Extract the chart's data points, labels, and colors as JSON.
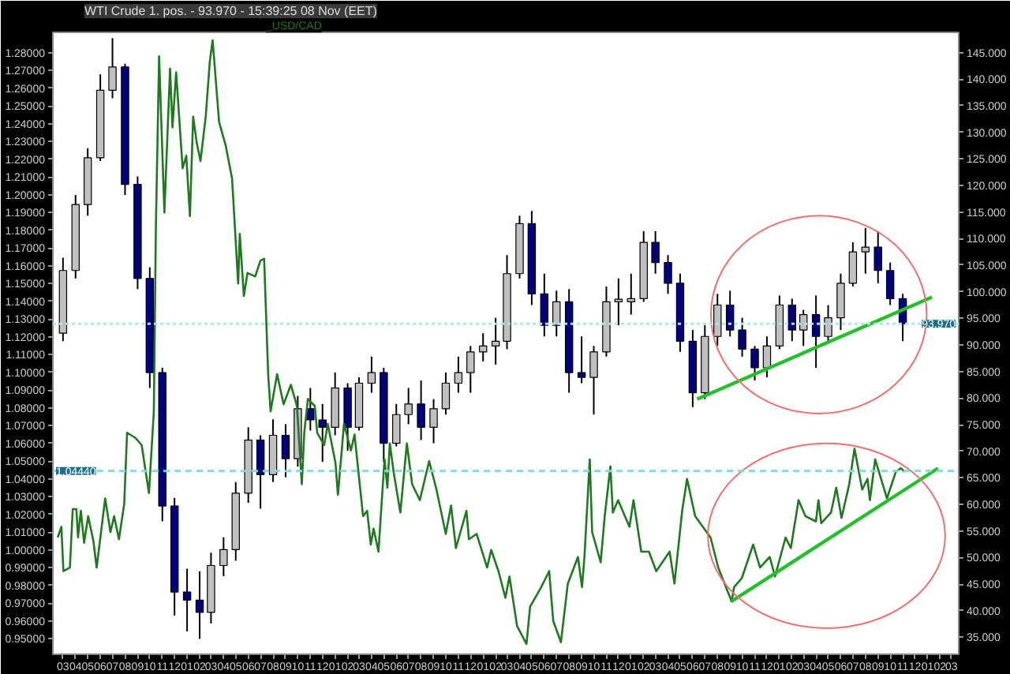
{
  "chart_data": {
    "type": "candlestick",
    "title": "WTI Crude 1. pos. - 93.970 - 15:39:25 08 Nov (EET)",
    "xlim": [
      "2008-02-05",
      "2014-03-19"
    ],
    "ylim": [
      0.9412,
      1.2915
    ],
    "y2lim": [
      31.8,
      148.8
    ],
    "xticks": [
      {
        "value": "2008-03-01",
        "label": "03"
      },
      {
        "value": "2008-04-01",
        "label": "04"
      },
      {
        "value": "2008-05-01",
        "label": "05"
      },
      {
        "value": "2008-06-01",
        "label": "06"
      },
      {
        "value": "2008-07-01",
        "label": "07"
      },
      {
        "value": "2008-08-01",
        "label": "08"
      },
      {
        "value": "2008-09-01",
        "label": "09"
      },
      {
        "value": "2008-10-01",
        "label": "10"
      },
      {
        "value": "2008-11-01",
        "label": "11"
      },
      {
        "value": "2008-12-01",
        "label": "12"
      },
      {
        "value": "2009-01-01",
        "label": "01"
      },
      {
        "value": "2009-02-01",
        "label": "02"
      },
      {
        "value": "2009-03-01",
        "label": "03"
      },
      {
        "value": "2009-04-01",
        "label": "04"
      },
      {
        "value": "2009-05-01",
        "label": "05"
      },
      {
        "value": "2009-06-01",
        "label": "06"
      },
      {
        "value": "2009-07-01",
        "label": "07"
      },
      {
        "value": "2009-08-01",
        "label": "08"
      },
      {
        "value": "2009-09-01",
        "label": "09"
      },
      {
        "value": "2009-10-01",
        "label": "10"
      },
      {
        "value": "2009-11-01",
        "label": "11"
      },
      {
        "value": "2009-12-01",
        "label": "12"
      },
      {
        "value": "2010-01-01",
        "label": "01"
      },
      {
        "value": "2010-02-01",
        "label": "02"
      },
      {
        "value": "2010-03-01",
        "label": "03"
      },
      {
        "value": "2010-04-01",
        "label": "04"
      },
      {
        "value": "2010-05-01",
        "label": "05"
      },
      {
        "value": "2010-06-01",
        "label": "06"
      },
      {
        "value": "2010-07-01",
        "label": "07"
      },
      {
        "value": "2010-08-01",
        "label": "08"
      },
      {
        "value": "2010-09-01",
        "label": "09"
      },
      {
        "value": "2010-10-01",
        "label": "10"
      },
      {
        "value": "2010-11-01",
        "label": "11"
      },
      {
        "value": "2010-12-01",
        "label": "12"
      },
      {
        "value": "2011-01-01",
        "label": "01"
      },
      {
        "value": "2011-02-01",
        "label": "02"
      },
      {
        "value": "2011-03-01",
        "label": "03"
      },
      {
        "value": "2011-04-01",
        "label": "04"
      },
      {
        "value": "2011-05-01",
        "label": "05"
      },
      {
        "value": "2011-06-01",
        "label": "06"
      },
      {
        "value": "2011-07-01",
        "label": "07"
      },
      {
        "value": "2011-08-01",
        "label": "08"
      },
      {
        "value": "2011-09-01",
        "label": "09"
      },
      {
        "value": "2011-10-01",
        "label": "10"
      },
      {
        "value": "2011-11-01",
        "label": "11"
      },
      {
        "value": "2011-12-01",
        "label": "12"
      },
      {
        "value": "2012-01-01",
        "label": "01"
      },
      {
        "value": "2012-02-01",
        "label": "02"
      },
      {
        "value": "2012-03-01",
        "label": "03"
      },
      {
        "value": "2012-04-01",
        "label": "04"
      },
      {
        "value": "2012-05-01",
        "label": "05"
      },
      {
        "value": "2012-06-01",
        "label": "06"
      },
      {
        "value": "2012-07-01",
        "label": "07"
      },
      {
        "value": "2012-08-01",
        "label": "08"
      },
      {
        "value": "2012-09-01",
        "label": "09"
      },
      {
        "value": "2012-10-01",
        "label": "10"
      },
      {
        "value": "2012-11-01",
        "label": "11"
      },
      {
        "value": "2012-12-01",
        "label": "12"
      },
      {
        "value": "2013-01-01",
        "label": "01"
      },
      {
        "value": "2013-02-01",
        "label": "02"
      },
      {
        "value": "2013-03-01",
        "label": "03"
      },
      {
        "value": "2013-04-01",
        "label": "04"
      },
      {
        "value": "2013-05-01",
        "label": "05"
      },
      {
        "value": "2013-06-01",
        "label": "06"
      },
      {
        "value": "2013-07-01",
        "label": "07"
      },
      {
        "value": "2013-08-01",
        "label": "08"
      },
      {
        "value": "2013-09-01",
        "label": "09"
      },
      {
        "value": "2013-10-01",
        "label": "10"
      },
      {
        "value": "2013-11-01",
        "label": "11"
      },
      {
        "value": "2013-12-01",
        "label": "12"
      },
      {
        "value": "2014-01-01",
        "label": "01"
      },
      {
        "value": "2014-02-01",
        "label": "02"
      },
      {
        "value": "2014-03-01",
        "label": "03"
      }
    ],
    "yticks": [
      {
        "value": 0.95,
        "label": "0.95000"
      },
      {
        "value": 0.96,
        "label": "0.96000"
      },
      {
        "value": 0.97,
        "label": "0.97000"
      },
      {
        "value": 0.98,
        "label": "0.98000"
      },
      {
        "value": 0.99,
        "label": "0.99000"
      },
      {
        "value": 1.0,
        "label": "1.00000"
      },
      {
        "value": 1.01,
        "label": "1.01000"
      },
      {
        "value": 1.02,
        "label": "1.02000"
      },
      {
        "value": 1.03,
        "label": "1.03000"
      },
      {
        "value": 1.04,
        "label": "1.04000"
      },
      {
        "value": 1.05,
        "label": "1.05000"
      },
      {
        "value": 1.06,
        "label": "1.06000"
      },
      {
        "value": 1.07,
        "label": "1.07000"
      },
      {
        "value": 1.08,
        "label": "1.08000"
      },
      {
        "value": 1.09,
        "label": "1.09000"
      },
      {
        "value": 1.1,
        "label": "1.10000"
      },
      {
        "value": 1.11,
        "label": "1.11000"
      },
      {
        "value": 1.12,
        "label": "1.12000"
      },
      {
        "value": 1.13,
        "label": "1.13000"
      },
      {
        "value": 1.14,
        "label": "1.14000"
      },
      {
        "value": 1.15,
        "label": "1.15000"
      },
      {
        "value": 1.16,
        "label": "1.16000"
      },
      {
        "value": 1.17,
        "label": "1.17000"
      },
      {
        "value": 1.18,
        "label": "1.18000"
      },
      {
        "value": 1.19,
        "label": "1.19000"
      },
      {
        "value": 1.2,
        "label": "1.20000"
      },
      {
        "value": 1.21,
        "label": "1.21000"
      },
      {
        "value": 1.22,
        "label": "1.22000"
      },
      {
        "value": 1.23,
        "label": "1.23000"
      },
      {
        "value": 1.24,
        "label": "1.24000"
      },
      {
        "value": 1.25,
        "label": "1.25000"
      },
      {
        "value": 1.26,
        "label": "1.26000"
      },
      {
        "value": 1.27,
        "label": "1.27000"
      },
      {
        "value": 1.28,
        "label": "1.28000"
      }
    ],
    "y2ticks": [
      {
        "value": 35,
        "label": "35.000"
      },
      {
        "value": 40,
        "label": "40.000"
      },
      {
        "value": 45,
        "label": "45.000"
      },
      {
        "value": 50,
        "label": "50.000"
      },
      {
        "value": 55,
        "label": "55.000"
      },
      {
        "value": 60,
        "label": "60.000"
      },
      {
        "value": 65,
        "label": "65.000"
      },
      {
        "value": 70,
        "label": "70.000"
      },
      {
        "value": 75,
        "label": "75.000"
      },
      {
        "value": 80,
        "label": "80.000"
      },
      {
        "value": 85,
        "label": "85.000"
      },
      {
        "value": 90,
        "label": "90.000"
      },
      {
        "value": 95,
        "label": "95.000"
      },
      {
        "value": 100,
        "label": "100.000"
      },
      {
        "value": 105,
        "label": "105.000"
      },
      {
        "value": 110,
        "label": "110.000"
      },
      {
        "value": 115,
        "label": "115.000"
      },
      {
        "value": 120,
        "label": "120.000"
      },
      {
        "value": 125,
        "label": "125.000"
      },
      {
        "value": 130,
        "label": "130.000"
      },
      {
        "value": 135,
        "label": "135.000"
      },
      {
        "value": 140,
        "label": "140.000"
      },
      {
        "value": 145,
        "label": "145.000"
      }
    ],
    "ref_lines": [
      {
        "axis": "y",
        "value": 1.0444,
        "label": "1.04440",
        "color": "#7fdcdc",
        "line_style": "dashed"
      },
      {
        "axis": "y2",
        "value": 93.97,
        "label": "93.970",
        "color": "#a8e8ec",
        "line_style": "dotted"
      }
    ],
    "series": [
      {
        "axis": "y2",
        "x": [
          "2008-03-01",
          "2008-04-01",
          "2008-05-01",
          "2008-06-01",
          "2008-07-01",
          "2008-08-01",
          "2008-09-01",
          "2008-10-01",
          "2008-11-01",
          "2008-12-01",
          "2009-01-01",
          "2009-02-01",
          "2009-03-01",
          "2009-04-01",
          "2009-05-01",
          "2009-06-01",
          "2009-07-01",
          "2009-08-01",
          "2009-09-01",
          "2009-10-01",
          "2009-11-01",
          "2009-12-01",
          "2010-01-01",
          "2010-02-01",
          "2010-03-01",
          "2010-04-01",
          "2010-05-01",
          "2010-06-01",
          "2010-07-01",
          "2010-08-01",
          "2010-09-01",
          "2010-10-01",
          "2010-11-01",
          "2010-12-01",
          "2011-01-01",
          "2011-02-01",
          "2011-03-01",
          "2011-04-01",
          "2011-05-01",
          "2011-06-01",
          "2011-07-01",
          "2011-08-01",
          "2011-09-01",
          "2011-10-01",
          "2011-11-01",
          "2011-12-01",
          "2012-01-01",
          "2012-02-01",
          "2012-03-01",
          "2012-04-01",
          "2012-05-01",
          "2012-06-01",
          "2012-07-01",
          "2012-08-01",
          "2012-09-01",
          "2012-10-01",
          "2012-11-01",
          "2012-12-01",
          "2013-01-01",
          "2013-02-01",
          "2013-03-01",
          "2013-04-01",
          "2013-05-01",
          "2013-06-01",
          "2013-07-01",
          "2013-08-01",
          "2013-09-01",
          "2013-10-01",
          "2013-11-01"
        ],
        "ohlc": [
          [
            92.2,
            106.4,
            90.7,
            104.0
          ],
          [
            104.0,
            118.2,
            102.5,
            116.4
          ],
          [
            116.4,
            127.0,
            114.3,
            125.2
          ],
          [
            125.2,
            140.9,
            124.6,
            137.9
          ],
          [
            137.9,
            147.7,
            136.4,
            142.3
          ],
          [
            142.3,
            142.9,
            118.2,
            120.2
          ],
          [
            120.2,
            121.7,
            100.5,
            102.5
          ],
          [
            102.5,
            104.6,
            81.9,
            84.8
          ],
          [
            84.8,
            85.7,
            56.8,
            59.7
          ],
          [
            59.7,
            61.2,
            39.1,
            43.5
          ],
          [
            43.5,
            47.9,
            36.1,
            42.0
          ],
          [
            42.0,
            47.4,
            34.7,
            39.7
          ],
          [
            39.7,
            50.9,
            37.6,
            48.5
          ],
          [
            48.5,
            53.8,
            46.5,
            51.5
          ],
          [
            51.5,
            64.2,
            49.4,
            62.1
          ],
          [
            62.1,
            74.5,
            60.3,
            72.1
          ],
          [
            72.1,
            73.0,
            59.2,
            65.6
          ],
          [
            65.6,
            76.0,
            64.2,
            73.0
          ],
          [
            73.0,
            75.1,
            65.1,
            68.6
          ],
          [
            68.6,
            80.4,
            67.1,
            78.0
          ],
          [
            78.0,
            81.9,
            73.9,
            75.9
          ],
          [
            75.9,
            78.9,
            68.0,
            74.5
          ],
          [
            74.5,
            84.8,
            73.0,
            81.9
          ],
          [
            81.9,
            82.8,
            70.1,
            74.5
          ],
          [
            74.5,
            83.9,
            73.9,
            82.8
          ],
          [
            82.8,
            87.8,
            81.0,
            84.8
          ],
          [
            84.8,
            85.7,
            68.0,
            71.5
          ],
          [
            71.5,
            78.9,
            70.9,
            76.9
          ],
          [
            76.9,
            81.9,
            75.1,
            78.9
          ],
          [
            78.9,
            83.3,
            72.1,
            74.5
          ],
          [
            74.5,
            79.8,
            71.5,
            78.0
          ],
          [
            78.0,
            84.8,
            76.9,
            82.8
          ],
          [
            82.8,
            87.8,
            81.0,
            84.8
          ],
          [
            84.8,
            89.8,
            81.0,
            88.7
          ],
          [
            88.7,
            92.2,
            86.9,
            89.8
          ],
          [
            89.8,
            95.1,
            86.3,
            90.7
          ],
          [
            90.7,
            106.9,
            89.2,
            103.4
          ],
          [
            103.4,
            114.3,
            102.5,
            112.8
          ],
          [
            112.8,
            115.2,
            97.5,
            99.6
          ],
          [
            99.6,
            103.4,
            91.6,
            93.7
          ],
          [
            93.7,
            100.2,
            91.6,
            98.1
          ],
          [
            98.1,
            100.5,
            81.0,
            84.8
          ],
          [
            84.8,
            91.6,
            82.8,
            83.9
          ],
          [
            83.9,
            89.8,
            76.9,
            88.7
          ],
          [
            88.7,
            101.0,
            87.8,
            98.1
          ],
          [
            98.1,
            102.5,
            93.7,
            98.6
          ],
          [
            98.1,
            103.4,
            95.7,
            98.7
          ],
          [
            98.7,
            111.4,
            98.1,
            109.3
          ],
          [
            109.3,
            111.4,
            103.4,
            105.5
          ],
          [
            105.5,
            106.9,
            99.6,
            101.6
          ],
          [
            101.6,
            103.4,
            88.7,
            90.7
          ],
          [
            90.7,
            92.8,
            78.3,
            81.0
          ],
          [
            81.0,
            93.7,
            79.8,
            91.6
          ],
          [
            91.6,
            99.6,
            89.8,
            97.5
          ],
          [
            97.5,
            100.2,
            91.6,
            92.8
          ],
          [
            92.8,
            95.1,
            87.8,
            89.2
          ],
          [
            89.2,
            89.8,
            83.3,
            85.7
          ],
          [
            85.7,
            91.6,
            83.9,
            89.8
          ],
          [
            89.8,
            99.3,
            89.2,
            97.5
          ],
          [
            97.5,
            98.7,
            90.7,
            92.8
          ],
          [
            92.8,
            96.6,
            89.8,
            95.7
          ],
          [
            95.7,
            99.3,
            85.7,
            91.6
          ],
          [
            91.6,
            97.5,
            90.7,
            95.1
          ],
          [
            95.1,
            103.4,
            92.8,
            101.6
          ],
          [
            101.6,
            109.3,
            101.0,
            107.5
          ],
          [
            107.5,
            112.0,
            103.4,
            108.4
          ],
          [
            108.4,
            111.4,
            101.6,
            104.0
          ],
          [
            104.0,
            105.5,
            97.5,
            98.7
          ],
          [
            98.7,
            99.6,
            90.7,
            93.97
          ]
        ],
        "colors": [
          "#c0c0c0",
          "#c0c0c0",
          "#c0c0c0",
          "#c0c0c0",
          "#c0c0c0",
          "#000080",
          "#000080",
          "#000080",
          "#000080",
          "#000080",
          "#000080",
          "#000080",
          "#c0c0c0",
          "#c0c0c0",
          "#c0c0c0",
          "#c0c0c0",
          "#000080",
          "#c0c0c0",
          "#000080",
          "#c0c0c0",
          "#000080",
          "#000080",
          "#c0c0c0",
          "#000080",
          "#c0c0c0",
          "#c0c0c0",
          "#000080",
          "#c0c0c0",
          "#c0c0c0",
          "#000080",
          "#c0c0c0",
          "#c0c0c0",
          "#c0c0c0",
          "#c0c0c0",
          "#c0c0c0",
          "#c0c0c0",
          "#c0c0c0",
          "#c0c0c0",
          "#000080",
          "#000080",
          "#c0c0c0",
          "#000080",
          "#000080",
          "#c0c0c0",
          "#c0c0c0",
          "#c0c0c0",
          "#c0c0c0",
          "#c0c0c0",
          "#000080",
          "#000080",
          "#000080",
          "#000080",
          "#c0c0c0",
          "#c0c0c0",
          "#000080",
          "#000080",
          "#000080",
          "#c0c0c0",
          "#c0c0c0",
          "#000080",
          "#c0c0c0",
          "#000080",
          "#c0c0c0",
          "#c0c0c0",
          "#c0c0c0",
          "#c0c0c0",
          "#000080",
          "#000080",
          "#000080"
        ]
      },
      {
        "type": "line",
        "name": "_USD/CAD",
        "color": "#1e7a1e",
        "axis": "y",
        "x": [
          "2008-02-17",
          "2008-02-26",
          "2008-03-02",
          "2008-03-18",
          "2008-03-25",
          "2008-04-03",
          "2008-04-07",
          "2008-04-14",
          "2008-04-22",
          "2008-05-02",
          "2008-05-15",
          "2008-05-23",
          "2008-06-13",
          "2008-06-26",
          "2008-07-05",
          "2008-07-17",
          "2008-07-30",
          "2008-08-06",
          "2008-08-27",
          "2008-09-11",
          "2008-09-29",
          "2008-10-11",
          "2008-10-16",
          "2008-10-24",
          "2008-11-06",
          "2008-11-20",
          "2008-11-26",
          "2008-12-05",
          "2008-12-21",
          "2008-12-30",
          "2009-01-08",
          "2009-01-16",
          "2009-01-25",
          "2009-02-03",
          "2009-02-16",
          "2009-02-26",
          "2009-03-05",
          "2009-03-21",
          "2009-04-06",
          "2009-04-22",
          "2009-05-07",
          "2009-05-11",
          "2009-05-21",
          "2009-05-30",
          "2009-06-18",
          "2009-07-01",
          "2009-07-10",
          "2009-07-20",
          "2009-07-26",
          "2009-08-11",
          "2009-08-27",
          "2009-09-14",
          "2009-09-29",
          "2009-10-11",
          "2009-10-17",
          "2009-10-26",
          "2009-11-12",
          "2009-11-18",
          "2009-12-05",
          "2009-12-14",
          "2010-01-02",
          "2010-01-08",
          "2010-01-23",
          "2010-02-09",
          "2010-02-18",
          "2010-03-11",
          "2010-03-21",
          "2010-03-30",
          "2010-04-06",
          "2010-04-18",
          "2010-04-28",
          "2010-05-03",
          "2010-05-10",
          "2010-05-16",
          "2010-05-26",
          "2010-06-11",
          "2010-06-27",
          "2010-07-10",
          "2010-07-29",
          "2010-08-21",
          "2010-09-08",
          "2010-10-01",
          "2010-10-14",
          "2010-10-26",
          "2010-11-21",
          "2010-11-27",
          "2010-12-16",
          "2011-01-11",
          "2011-01-21",
          "2011-02-08",
          "2011-02-25",
          "2011-03-07",
          "2011-03-26",
          "2011-04-18",
          "2011-04-27",
          "2011-05-22",
          "2011-06-13",
          "2011-06-23",
          "2011-07-12",
          "2011-07-29",
          "2011-08-23",
          "2011-09-02",
          "2011-09-08",
          "2011-09-21",
          "2011-09-27",
          "2011-10-18",
          "2011-10-28",
          "2011-11-11",
          "2011-11-17",
          "2011-11-30",
          "2011-12-28",
          "2012-01-07",
          "2012-01-26",
          "2012-02-14",
          "2012-03-03",
          "2012-04-05",
          "2012-04-17",
          "2012-05-06",
          "2012-05-18",
          "2012-06-07",
          "2012-07-15",
          "2012-08-03",
          "2012-09-05",
          "2012-09-11",
          "2012-09-30",
          "2012-10-28",
          "2012-11-14",
          "2012-12-08",
          "2012-12-21",
          "2013-01-16",
          "2013-01-29",
          "2013-02-17",
          "2013-03-06",
          "2013-04-01",
          "2013-04-07",
          "2013-04-14",
          "2013-05-08",
          "2013-05-21",
          "2013-06-03",
          "2013-06-22",
          "2013-07-05",
          "2013-07-24",
          "2013-08-06",
          "2013-08-12",
          "2013-08-25",
          "2013-09-23",
          "2013-10-15",
          "2013-10-27",
          "2013-11-06"
        ],
        "values": [
          1.007,
          1.013,
          0.988,
          0.99,
          1.023,
          1.023,
          1.007,
          1.022,
          1.004,
          1.019,
          1.005,
          0.99,
          1.029,
          1.01,
          1.019,
          1.006,
          1.026,
          1.066,
          1.063,
          1.059,
          1.032,
          1.078,
          1.181,
          1.278,
          1.19,
          1.271,
          1.238,
          1.269,
          1.215,
          1.222,
          1.188,
          1.244,
          1.229,
          1.219,
          1.244,
          1.275,
          1.287,
          1.241,
          1.228,
          1.209,
          1.15,
          1.178,
          1.143,
          1.156,
          1.154,
          1.163,
          1.164,
          1.099,
          1.078,
          1.099,
          1.082,
          1.093,
          1.081,
          1.037,
          1.066,
          1.085,
          1.081,
          1.066,
          1.059,
          1.071,
          1.049,
          1.031,
          1.071,
          1.056,
          1.065,
          1.019,
          1.022,
          1.003,
          1.012,
          0.999,
          1.034,
          1.051,
          1.035,
          1.06,
          1.043,
          1.021,
          1.06,
          1.037,
          1.028,
          1.05,
          1.034,
          1.009,
          1.025,
          1.001,
          1.022,
          1.006,
          1.009,
          0.99,
          1.0,
          0.988,
          0.973,
          0.985,
          0.957,
          0.947,
          0.968,
          0.978,
          0.988,
          0.96,
          0.948,
          0.981,
          0.996,
          0.979,
          0.996,
          1.051,
          1.01,
          0.993,
          1.019,
          1.047,
          1.021,
          1.028,
          1.013,
          1.028,
          0.999,
          0.999,
          0.988,
          0.999,
          0.981,
          1.022,
          1.04,
          1.019,
          1.007,
          0.99,
          0.971,
          0.979,
          0.984,
          1.003,
          0.99,
          0.996,
          0.985,
          1.007,
          1.001,
          1.028,
          1.019,
          1.016,
          1.028,
          1.015,
          1.021,
          1.035,
          1.018,
          1.037,
          1.057,
          1.034,
          1.04,
          1.028,
          1.051,
          1.029,
          1.044,
          1.046,
          1.044
        ]
      },
      {
        "type": "line",
        "color": "#22c02a",
        "axis": "y2",
        "x": [
          "2012-06-12",
          "2014-01-12"
        ],
        "values": [
          79.8,
          99.0
        ]
      },
      {
        "type": "line",
        "color": "#22c02a",
        "axis": "y",
        "x": [
          "2012-09-05",
          "2014-01-27"
        ],
        "values": [
          0.971,
          1.046
        ]
      }
    ]
  }
}
